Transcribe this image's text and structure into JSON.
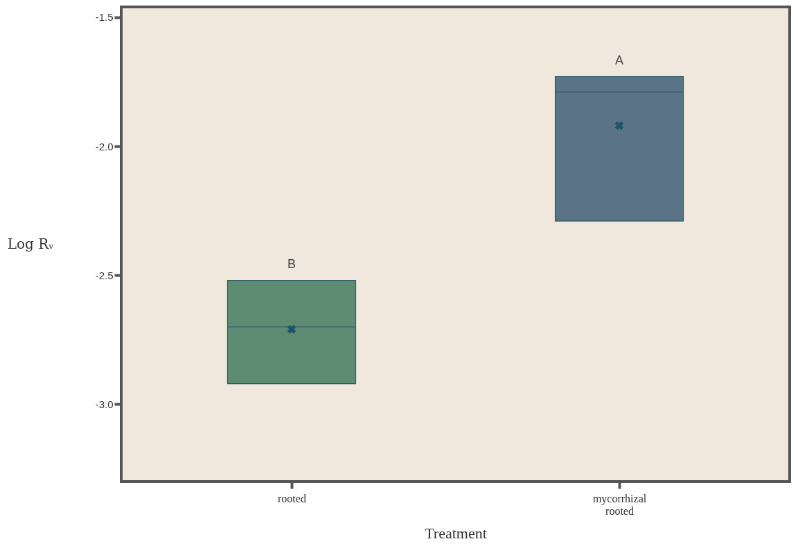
{
  "chart_data": {
    "type": "box",
    "xlabel": "Treatment",
    "ylabel": "Log Rᵥ",
    "categories": [
      "rooted",
      "mycorrhizal rooted"
    ],
    "boxes": [
      {
        "low": -2.92,
        "q1": -2.92,
        "median": -2.7,
        "q3": -2.52,
        "high": -2.52,
        "mean": -2.71
      },
      {
        "low": -2.29,
        "q1": -2.29,
        "median": -1.79,
        "q3": -1.73,
        "high": -1.73,
        "mean": -1.92
      }
    ],
    "colors": [
      "#5e8c72",
      "#5b7386"
    ],
    "ylim": [
      -3.3,
      -1.46
    ],
    "yticks": [
      -1.5,
      {
        "value": -2,
        "label": "-2.0"
      },
      -2.5,
      {
        "value": -3,
        "label": "-3.0"
      }
    ],
    "annotations": [
      "B",
      "A"
    ]
  }
}
